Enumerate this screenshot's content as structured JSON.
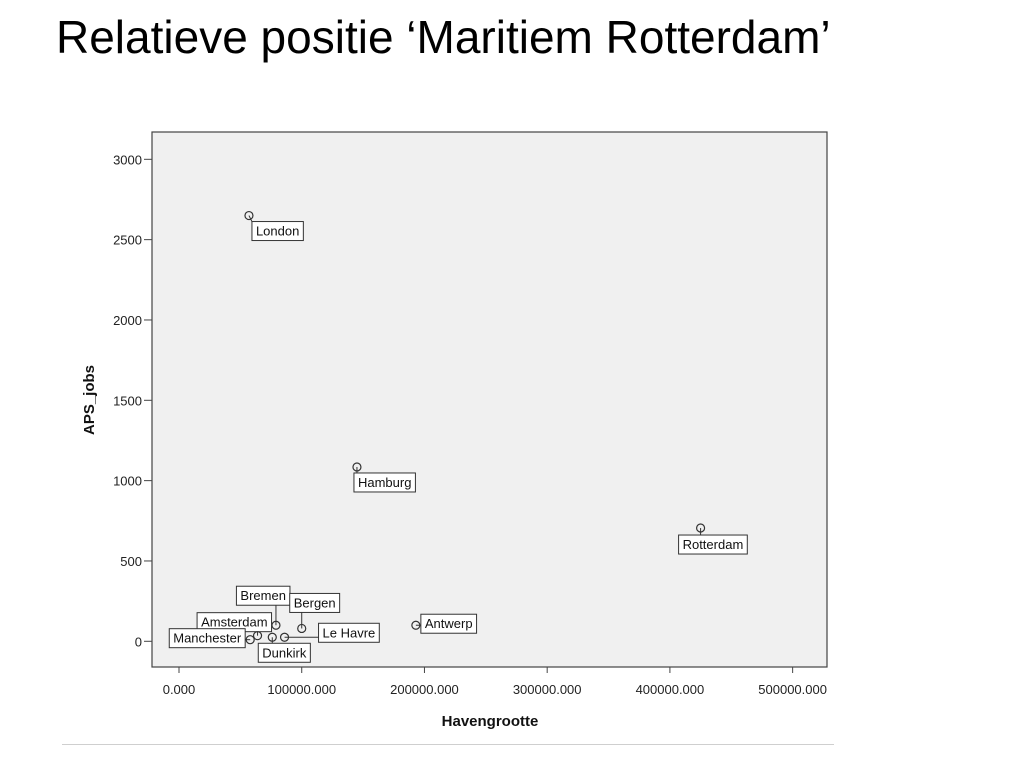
{
  "slide": {
    "title": "Relatieve positie ‘Maritiem Rotterdam’"
  },
  "chart_data": {
    "type": "scatter",
    "xlabel": "Havengrootte",
    "ylabel": "APS_jobs",
    "xlim": [
      -22000,
      528000
    ],
    "ylim": [
      -160,
      3170
    ],
    "x_ticks": [
      0,
      100000,
      200000,
      300000,
      400000,
      500000
    ],
    "x_tick_labels": [
      "0.000",
      "100000.000",
      "200000.000",
      "300000.000",
      "400000.000",
      "500000.000"
    ],
    "y_ticks": [
      0,
      500,
      1000,
      1500,
      2000,
      2500,
      3000
    ],
    "y_tick_labels": [
      "0",
      "500",
      "1000",
      "1500",
      "2000",
      "2500",
      "3000"
    ],
    "grid": false,
    "legend": "none",
    "point_color": "#333333",
    "background_color": "#f0f0f0",
    "points": [
      {
        "label": "London",
        "x": 57000,
        "y": 2650
      },
      {
        "label": "Hamburg",
        "x": 145000,
        "y": 1085
      },
      {
        "label": "Rotterdam",
        "x": 425000,
        "y": 705
      },
      {
        "label": "Antwerp",
        "x": 193000,
        "y": 100
      },
      {
        "label": "Bremen",
        "x": 79000,
        "y": 100
      },
      {
        "label": "Bergen",
        "x": 100000,
        "y": 80
      },
      {
        "label": "Amsterdam",
        "x": 64000,
        "y": 35
      },
      {
        "label": "Le Havre",
        "x": 86000,
        "y": 25
      },
      {
        "label": "Dunkirk",
        "x": 76000,
        "y": 25
      },
      {
        "label": "Manchester",
        "x": 58000,
        "y": 10
      }
    ]
  }
}
